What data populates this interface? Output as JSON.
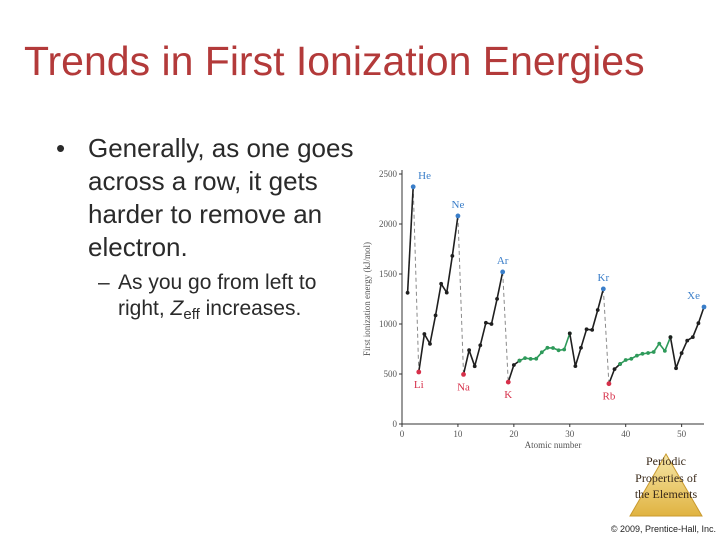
{
  "slide": {
    "title": "Trends in First Ionization Energies",
    "bullet_marker": "•",
    "bullet_1": "Generally, as one goes across a row, it gets harder to remove an electron.",
    "sub_dash": "–",
    "sub_1_before": "As you go from left to right, ",
    "sub_1_z": "Z",
    "sub_1_eff": "eff",
    "sub_1_after": " increases.",
    "badge_text": "Periodic Properties of the Elements",
    "copyright": "© 2009, Prentice-Hall, Inc."
  },
  "chart_data": {
    "type": "line",
    "title": "",
    "xlabel": "Atomic number",
    "ylabel": "First ionization energy (kJ/mol)",
    "xlim": [
      0,
      54
    ],
    "ylim": [
      0,
      2500
    ],
    "xticks": [
      0,
      10,
      20,
      30,
      40,
      50
    ],
    "yticks": [
      0,
      500,
      1000,
      1500,
      2000,
      2500
    ],
    "grid": false,
    "colors": {
      "main": "#1f1f1f",
      "transition": "#2e9a5a",
      "noble": "#3a7ec9",
      "alkali": "#d6304a",
      "drop": "#8a8a8a",
      "axis": "#333333",
      "label": "#555555"
    },
    "series": [
      {
        "role": "main",
        "x": [
          1,
          2
        ],
        "y": [
          1312,
          2372
        ]
      },
      {
        "role": "main",
        "x": [
          3,
          4,
          5,
          6,
          7,
          8,
          9,
          10
        ],
        "y": [
          520,
          900,
          801,
          1086,
          1402,
          1314,
          1681,
          2081
        ]
      },
      {
        "role": "main",
        "x": [
          11,
          12,
          13,
          14,
          15,
          16,
          17,
          18
        ],
        "y": [
          496,
          738,
          578,
          787,
          1012,
          1000,
          1251,
          1521
        ]
      },
      {
        "role": "main",
        "x": [
          19,
          20,
          21
        ],
        "y": [
          419,
          590,
          633
        ]
      },
      {
        "role": "transition",
        "x": [
          21,
          22,
          23,
          24,
          25,
          26,
          27,
          28,
          29,
          30
        ],
        "y": [
          633,
          659,
          651,
          653,
          717,
          762,
          760,
          737,
          745,
          906
        ]
      },
      {
        "role": "main",
        "x": [
          30,
          31,
          32,
          33,
          34,
          35,
          36
        ],
        "y": [
          906,
          579,
          762,
          947,
          941,
          1140,
          1351
        ]
      },
      {
        "role": "main",
        "x": [
          37,
          38,
          39
        ],
        "y": [
          403,
          549,
          600
        ]
      },
      {
        "role": "transition",
        "x": [
          39,
          40,
          41,
          42,
          43,
          44,
          45,
          46,
          47,
          48
        ],
        "y": [
          600,
          640,
          652,
          684,
          702,
          710,
          720,
          804,
          731,
          868
        ]
      },
      {
        "role": "main",
        "x": [
          48,
          49,
          50,
          51,
          52,
          53,
          54
        ],
        "y": [
          868,
          558,
          709,
          834,
          869,
          1008,
          1170
        ]
      }
    ],
    "drops": [
      {
        "from": [
          2,
          2372
        ],
        "to": [
          3,
          520
        ]
      },
      {
        "from": [
          10,
          2081
        ],
        "to": [
          11,
          496
        ]
      },
      {
        "from": [
          18,
          1521
        ],
        "to": [
          19,
          419
        ]
      },
      {
        "from": [
          36,
          1351
        ],
        "to": [
          37,
          403
        ]
      }
    ],
    "point_labels": [
      {
        "text": "He",
        "x": 2,
        "y": 2372,
        "role": "noble",
        "pos": "above-right"
      },
      {
        "text": "Ne",
        "x": 10,
        "y": 2081,
        "role": "noble",
        "pos": "above"
      },
      {
        "text": "Ar",
        "x": 18,
        "y": 1521,
        "role": "noble",
        "pos": "above"
      },
      {
        "text": "Kr",
        "x": 36,
        "y": 1351,
        "role": "noble",
        "pos": "above"
      },
      {
        "text": "Xe",
        "x": 54,
        "y": 1170,
        "role": "noble",
        "pos": "above-left"
      },
      {
        "text": "Li",
        "x": 3,
        "y": 520,
        "role": "alkali",
        "pos": "below"
      },
      {
        "text": "Na",
        "x": 11,
        "y": 496,
        "role": "alkali",
        "pos": "below"
      },
      {
        "text": "K",
        "x": 19,
        "y": 419,
        "role": "alkali",
        "pos": "below"
      },
      {
        "text": "Rb",
        "x": 37,
        "y": 403,
        "role": "alkali",
        "pos": "below"
      }
    ]
  }
}
